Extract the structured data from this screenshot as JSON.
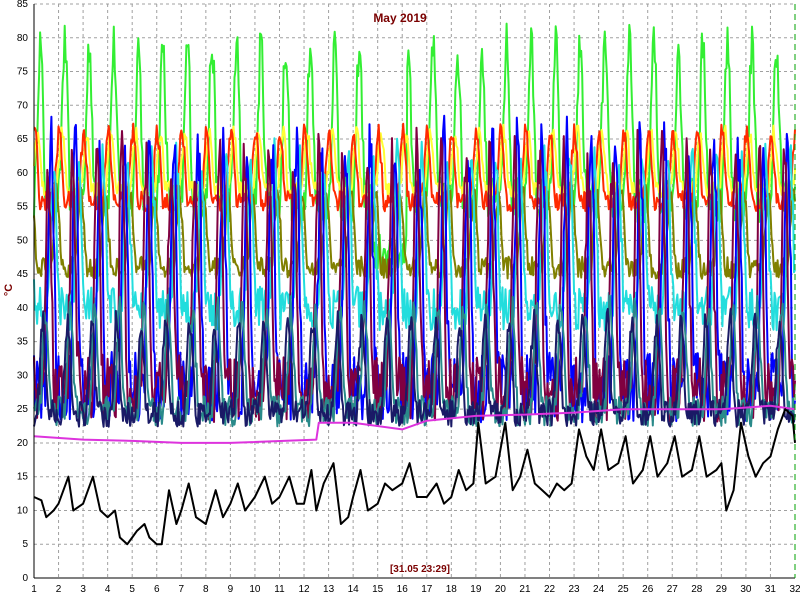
{
  "chart_data": {
    "type": "line",
    "title": "May 2019",
    "ylabel": "°C",
    "timestamp": "[31.05 23:29]",
    "xlim": [
      1,
      32
    ],
    "ylim": [
      0,
      85
    ],
    "x_ticks": [
      1,
      2,
      3,
      4,
      5,
      6,
      7,
      8,
      9,
      10,
      11,
      12,
      13,
      14,
      15,
      16,
      17,
      18,
      19,
      20,
      21,
      22,
      23,
      24,
      25,
      26,
      27,
      28,
      29,
      30,
      31,
      32
    ],
    "y_ticks": [
      0,
      5,
      10,
      15,
      20,
      25,
      30,
      35,
      40,
      45,
      50,
      55,
      60,
      65,
      70,
      75,
      80,
      85
    ],
    "grid": true,
    "colors": {
      "background": "#ffffff",
      "grid": "#a0a0a0",
      "title": "#7a0000",
      "end_marker": "#00a000"
    },
    "series": [
      {
        "color": "#33ee33",
        "min": 52,
        "max": 79,
        "dips": [
          [
            14.8,
            16.2,
            45
          ]
        ]
      },
      {
        "color": "#ffff33",
        "min": 56,
        "max": 66
      },
      {
        "color": "#ff2a00",
        "min": 54,
        "max": 66
      },
      {
        "color": "#808000",
        "min": 44,
        "max": 57
      },
      {
        "color": "#22dddd",
        "min": 36,
        "max": 62
      },
      {
        "color": "#0000ff",
        "min": 22,
        "max": 64
      },
      {
        "color": "#800040",
        "min": 22,
        "max": 62
      },
      {
        "color": "#2a8a8a",
        "min": 22,
        "max": 40
      },
      {
        "color": "#1a1a66",
        "min": 22,
        "max": 38
      },
      {
        "color": "#dd33dd",
        "points": [
          [
            1,
            21
          ],
          [
            3,
            20.5
          ],
          [
            5,
            20.3
          ],
          [
            7,
            20
          ],
          [
            9,
            20
          ],
          [
            12.5,
            20.5
          ],
          [
            12.6,
            23
          ],
          [
            14,
            23
          ],
          [
            16,
            22
          ],
          [
            17,
            23.3
          ],
          [
            19,
            24
          ],
          [
            21,
            24.2
          ],
          [
            23,
            24.5
          ],
          [
            25,
            25
          ],
          [
            27,
            25
          ],
          [
            29,
            25
          ],
          [
            31,
            25.5
          ],
          [
            32,
            25
          ]
        ]
      },
      {
        "color": "#000000",
        "points": [
          [
            1,
            12
          ],
          [
            1.3,
            11.5
          ],
          [
            1.5,
            9
          ],
          [
            1.8,
            10
          ],
          [
            2,
            11
          ],
          [
            2.4,
            15
          ],
          [
            2.6,
            10
          ],
          [
            3,
            11
          ],
          [
            3.4,
            15
          ],
          [
            3.7,
            10
          ],
          [
            4,
            9
          ],
          [
            4.3,
            10
          ],
          [
            4.5,
            6
          ],
          [
            4.8,
            5
          ],
          [
            5,
            6
          ],
          [
            5.2,
            7
          ],
          [
            5.5,
            8
          ],
          [
            5.7,
            6
          ],
          [
            6,
            5
          ],
          [
            6.2,
            5
          ],
          [
            6.5,
            13
          ],
          [
            6.8,
            8
          ],
          [
            7,
            10
          ],
          [
            7.3,
            14
          ],
          [
            7.6,
            9
          ],
          [
            8,
            8
          ],
          [
            8.4,
            13
          ],
          [
            8.7,
            9
          ],
          [
            9,
            11
          ],
          [
            9.3,
            14
          ],
          [
            9.6,
            10
          ],
          [
            10,
            12
          ],
          [
            10.4,
            15
          ],
          [
            10.7,
            11
          ],
          [
            11,
            12
          ],
          [
            11.4,
            15
          ],
          [
            11.7,
            11
          ],
          [
            12,
            11
          ],
          [
            12.3,
            16
          ],
          [
            12.5,
            10
          ],
          [
            12.8,
            14
          ],
          [
            13.2,
            17
          ],
          [
            13.5,
            8
          ],
          [
            13.8,
            9
          ],
          [
            14,
            12
          ],
          [
            14.3,
            16
          ],
          [
            14.6,
            10
          ],
          [
            15,
            11
          ],
          [
            15.3,
            14
          ],
          [
            15.6,
            13
          ],
          [
            16,
            14
          ],
          [
            16.3,
            17
          ],
          [
            16.6,
            12
          ],
          [
            17,
            12
          ],
          [
            17.4,
            14
          ],
          [
            17.7,
            11
          ],
          [
            18,
            12
          ],
          [
            18.3,
            16
          ],
          [
            18.6,
            13
          ],
          [
            18.9,
            14
          ],
          [
            19.1,
            23
          ],
          [
            19.4,
            14
          ],
          [
            19.8,
            15
          ],
          [
            20.2,
            23
          ],
          [
            20.5,
            13
          ],
          [
            20.8,
            15
          ],
          [
            21.1,
            19
          ],
          [
            21.4,
            14
          ],
          [
            21.7,
            13
          ],
          [
            22,
            12
          ],
          [
            22.3,
            14
          ],
          [
            22.6,
            13
          ],
          [
            22.9,
            14
          ],
          [
            23.2,
            22
          ],
          [
            23.5,
            18
          ],
          [
            23.8,
            16
          ],
          [
            24.1,
            22
          ],
          [
            24.4,
            16
          ],
          [
            24.8,
            17
          ],
          [
            25.1,
            21
          ],
          [
            25.4,
            14
          ],
          [
            25.8,
            16
          ],
          [
            26.1,
            21
          ],
          [
            26.4,
            15
          ],
          [
            26.8,
            17
          ],
          [
            27.1,
            21
          ],
          [
            27.4,
            15
          ],
          [
            27.8,
            16
          ],
          [
            28.1,
            21
          ],
          [
            28.4,
            15
          ],
          [
            28.8,
            16
          ],
          [
            29,
            17
          ],
          [
            29.2,
            10
          ],
          [
            29.5,
            13
          ],
          [
            29.8,
            23
          ],
          [
            30.1,
            18
          ],
          [
            30.4,
            15
          ],
          [
            30.7,
            17
          ],
          [
            31,
            18
          ],
          [
            31.3,
            22
          ],
          [
            31.6,
            25
          ],
          [
            31.9,
            24
          ],
          [
            32,
            20
          ]
        ]
      }
    ]
  }
}
